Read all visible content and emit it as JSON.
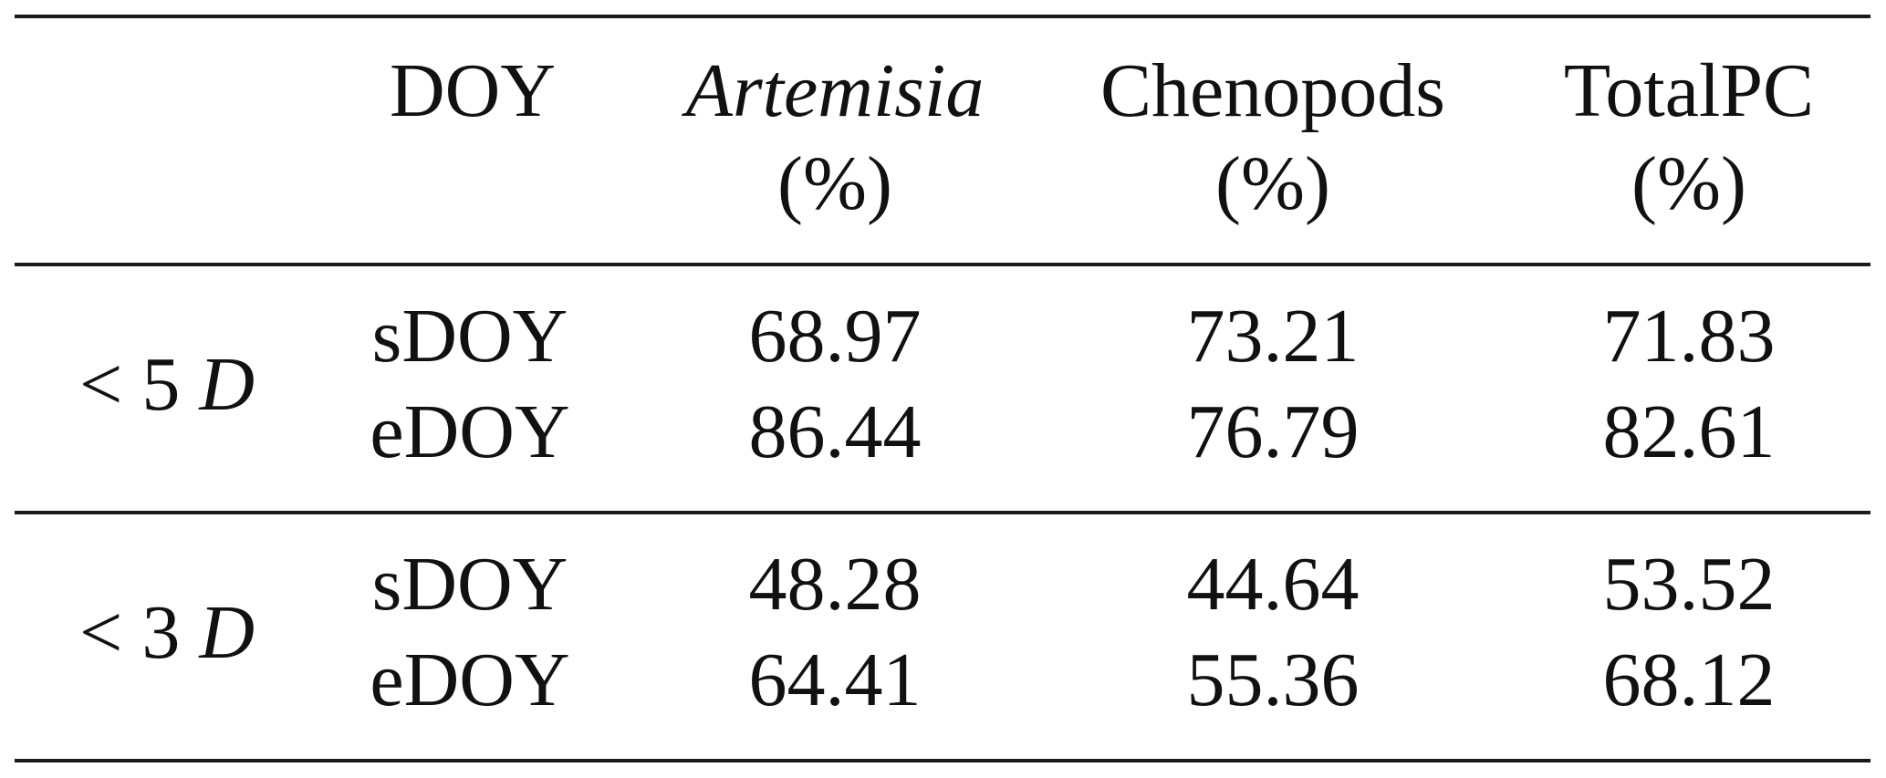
{
  "table": {
    "header": {
      "doy": "DOY",
      "artemisia": "Artemisia",
      "chenopods": "Chenopods",
      "totalpc": "TotalPC",
      "unit": "(%)"
    },
    "groups": [
      {
        "symbol": "<",
        "number": "5",
        "var": "D",
        "rows": [
          {
            "doy": "sDOY",
            "artemisia": "68.97",
            "chenopods": "73.21",
            "totalpc": "71.83"
          },
          {
            "doy": "eDOY",
            "artemisia": "86.44",
            "chenopods": "76.79",
            "totalpc": "82.61"
          }
        ]
      },
      {
        "symbol": "<",
        "number": "3",
        "var": "D",
        "rows": [
          {
            "doy": "sDOY",
            "artemisia": "48.28",
            "chenopods": "44.64",
            "totalpc": "53.52"
          },
          {
            "doy": "eDOY",
            "artemisia": "64.41",
            "chenopods": "55.36",
            "totalpc": "68.12"
          }
        ]
      }
    ]
  }
}
